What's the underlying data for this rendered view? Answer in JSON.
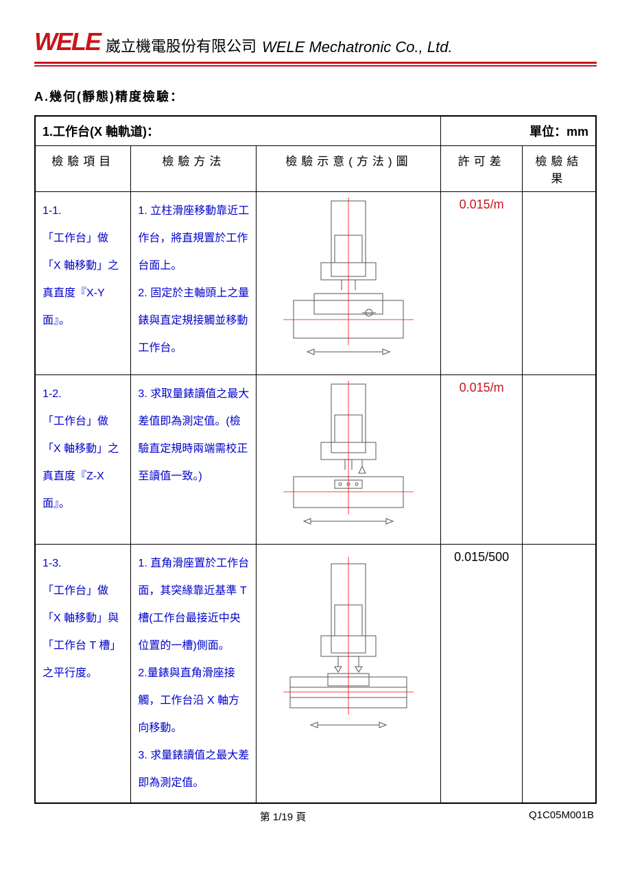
{
  "header": {
    "logo_text": "WELE",
    "company_cn": "崴立機電股份有限公司",
    "company_en": "WELE Mechatronic Co., Ltd."
  },
  "colors": {
    "brand_red": "#c8151b",
    "link_blue": "#0000cc",
    "black": "#000000",
    "diagram_red": "#ff0000",
    "diagram_stroke": "#555555"
  },
  "section_title": "A.幾何(靜態)精度檢驗：",
  "table": {
    "title": "1.工作台(X 軸軌道)：",
    "unit_label": "單位：mm",
    "headers": {
      "item": "檢驗項目",
      "method": "檢驗方法",
      "diagram": "檢驗示意(方法)圖",
      "tolerance": "許可差",
      "result": "檢驗結果"
    },
    "rows": [
      {
        "item_no": "1-1.",
        "item_text": "「工作台」做「X 軸移動」之真直度『X-Y 面』。",
        "method": "1. 立柱滑座移動靠近工作台，將直規置於工作台面上。\n2. 固定於主軸頭上之量錶與直定規接觸並移動工作台。",
        "tolerance": "0.015/m",
        "tolerance_color": "#c8151b",
        "diagram_type": "top"
      },
      {
        "item_no": "1-2.",
        "item_text": "「工作台」做「X 軸移動」之真直度『Z-X 面』。",
        "method": "3. 求取量錶讀值之最大差值即為測定值。(檢驗直定規時兩端需校正至讀值一致。)",
        "tolerance": "0.015/m",
        "tolerance_color": "#c8151b",
        "diagram_type": "side"
      },
      {
        "item_no": "1-3.",
        "item_text": "「工作台」做「X 軸移動」與「工作台 T 槽」之平行度。",
        "method": "1. 直角滑座置於工作台面，其突緣靠近基準 T 槽(工作台最接近中央位置的一槽)側面。\n2.量錶與直角滑座接觸，工作台沿 X 軸方向移動。\n3. 求量錶讀值之最大差即為測定值。",
        "tolerance": "0.015/500",
        "tolerance_color": "#000000",
        "diagram_type": "tslot"
      }
    ]
  },
  "footer": {
    "page": "第 1/19 頁",
    "doc_no": "Q1C05M001B"
  }
}
